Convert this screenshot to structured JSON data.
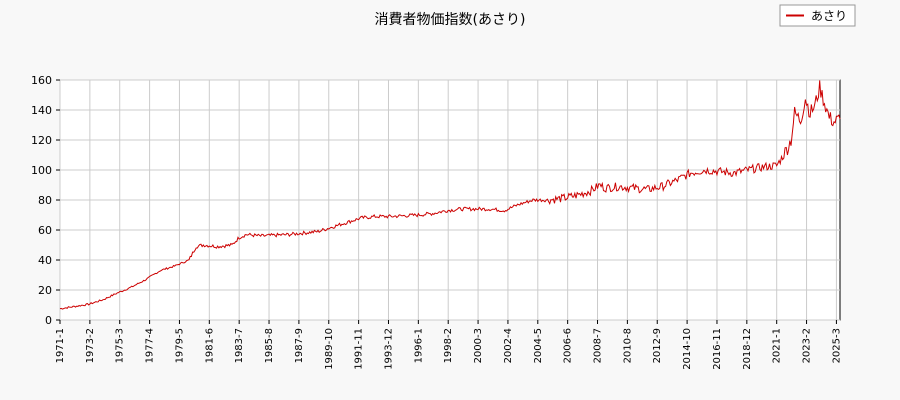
{
  "chart_data": {
    "type": "line",
    "title": "消費者物価指数(あさり)",
    "xlabel": "",
    "ylabel": "",
    "ylim": [
      0,
      160
    ],
    "yticks": [
      0,
      20,
      40,
      60,
      80,
      100,
      120,
      140,
      160
    ],
    "x_tick_labels": [
      "1971-1",
      "1973-2",
      "1975-3",
      "1977-4",
      "1979-5",
      "1981-6",
      "1983-7",
      "1985-8",
      "1987-9",
      "1989-10",
      "1991-11",
      "1993-12",
      "1996-1",
      "1998-2",
      "2000-3",
      "2002-4",
      "2004-5",
      "2006-6",
      "2008-7",
      "2010-8",
      "2012-9",
      "2014-10",
      "2016-11",
      "2018-12",
      "2021-1",
      "2023-2",
      "2025-3"
    ],
    "grid": true,
    "legend_position": "top-right",
    "series": [
      {
        "name": "あさり",
        "color": "#cc0000",
        "points": [
          [
            "1971-1",
            7.5
          ],
          [
            "1972-1",
            9
          ],
          [
            "1973-1",
            10.5
          ],
          [
            "1974-1",
            13.5
          ],
          [
            "1975-1",
            18
          ],
          [
            "1976-1",
            22
          ],
          [
            "1977-1",
            27
          ],
          [
            "1978-1",
            33
          ],
          [
            "1979-1",
            36
          ],
          [
            "1980-1",
            40
          ],
          [
            "1980-7",
            49
          ],
          [
            "1981-1",
            50
          ],
          [
            "1982-1",
            49
          ],
          [
            "1983-1",
            50
          ],
          [
            "1983-7",
            55
          ],
          [
            "1984-1",
            57
          ],
          [
            "1985-1",
            56
          ],
          [
            "1986-1",
            56.5
          ],
          [
            "1987-1",
            57
          ],
          [
            "1988-1",
            58
          ],
          [
            "1989-1",
            59
          ],
          [
            "1990-1",
            62
          ],
          [
            "1991-1",
            65
          ],
          [
            "1992-1",
            68
          ],
          [
            "1993-1",
            69
          ],
          [
            "1994-1",
            69
          ],
          [
            "1995-1",
            69.5
          ],
          [
            "1996-1",
            70
          ],
          [
            "1997-1",
            71
          ],
          [
            "1998-1",
            73
          ],
          [
            "1999-1",
            74
          ],
          [
            "2000-1",
            74
          ],
          [
            "2001-1",
            74
          ],
          [
            "2002-1",
            73
          ],
          [
            "2003-1",
            77
          ],
          [
            "2004-1",
            80
          ],
          [
            "2005-1",
            80
          ],
          [
            "2006-1",
            81
          ],
          [
            "2007-1",
            83
          ],
          [
            "2008-1",
            86
          ],
          [
            "2008-9",
            90
          ],
          [
            "2009-1",
            88
          ],
          [
            "2010-1",
            89
          ],
          [
            "2011-1",
            88
          ],
          [
            "2012-1",
            87
          ],
          [
            "2013-1",
            89
          ],
          [
            "2014-1",
            93
          ],
          [
            "2015-1",
            98
          ],
          [
            "2016-1",
            100
          ],
          [
            "2017-1",
            99
          ],
          [
            "2018-1",
            98
          ],
          [
            "2019-1",
            100
          ],
          [
            "2020-1",
            102
          ],
          [
            "2021-1",
            103
          ],
          [
            "2021-7",
            110
          ],
          [
            "2022-1",
            120
          ],
          [
            "2022-4",
            138
          ],
          [
            "2022-9",
            133
          ],
          [
            "2023-1",
            148
          ],
          [
            "2023-5",
            138
          ],
          [
            "2023-9",
            143
          ],
          [
            "2024-1",
            155
          ],
          [
            "2024-5",
            145
          ],
          [
            "2024-9",
            135
          ],
          [
            "2025-1",
            132
          ],
          [
            "2025-6",
            134
          ]
        ]
      }
    ]
  }
}
